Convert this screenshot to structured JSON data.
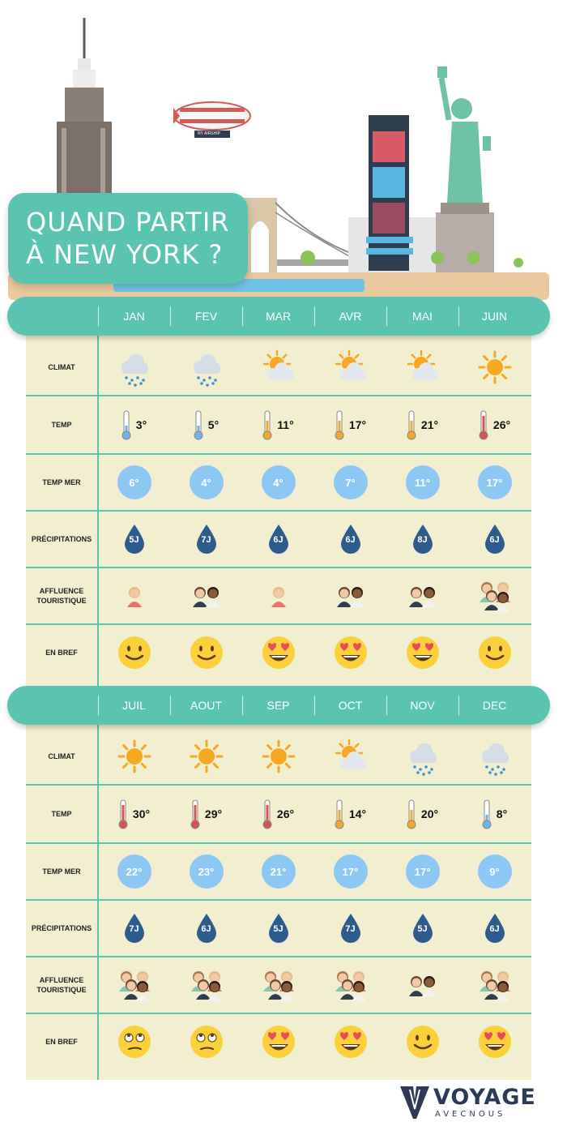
{
  "header": {
    "title_line1": "QUAND PARTIR",
    "title_line2": "À NEW YORK ?",
    "blimp_text": "NY AIRSHIP"
  },
  "row_labels": {
    "climat": "CLIMAT",
    "temp": "TEMP",
    "temp_mer": "TEMP MER",
    "precipitations": "PRÉCIPITATIONS",
    "affluence": "AFFLUENCE TOURISTIQUE",
    "en_bref": "EN BREF"
  },
  "tables": [
    {
      "months": [
        "JAN",
        "FEV",
        "MAR",
        "AVR",
        "MAI",
        "JUIN"
      ],
      "climat": [
        "rain-cloud-icon",
        "rain-cloud-icon",
        "sun-cloud-icon",
        "sun-cloud-icon",
        "sun-cloud-icon",
        "sun-icon"
      ],
      "temp": [
        "3°",
        "5°",
        "11°",
        "17°",
        "21°",
        "26°"
      ],
      "thermo": [
        "cold",
        "cold",
        "mild",
        "mild",
        "mild",
        "hot"
      ],
      "temp_mer": [
        "6°",
        "4°",
        "4°",
        "7°",
        "11°",
        "17°"
      ],
      "precipitations": [
        "5J",
        "7J",
        "6J",
        "6J",
        "8J",
        "6J"
      ],
      "affluence": [
        1,
        2,
        1,
        2,
        2,
        3
      ],
      "en_bref": [
        "smile",
        "smile",
        "love",
        "love",
        "love",
        "smile"
      ]
    },
    {
      "months": [
        "JUIL",
        "AOUT",
        "SEP",
        "OCT",
        "NOV",
        "DEC"
      ],
      "climat": [
        "sun-icon",
        "sun-icon",
        "sun-icon",
        "sun-cloud-icon",
        "rain-cloud-icon",
        "rain-cloud-icon"
      ],
      "temp": [
        "30°",
        "29°",
        "26°",
        "14°",
        "20°",
        "8°"
      ],
      "thermo": [
        "hot",
        "hot",
        "hot",
        "mild",
        "mild",
        "cold"
      ],
      "temp_mer": [
        "22°",
        "23°",
        "21°",
        "17°",
        "17°",
        "9°"
      ],
      "precipitations": [
        "7J",
        "6J",
        "5J",
        "7J",
        "5J",
        "6J"
      ],
      "affluence": [
        3,
        3,
        3,
        3,
        2,
        3
      ],
      "en_bref": [
        "eyeroll",
        "eyeroll",
        "love",
        "love",
        "smile",
        "love"
      ]
    }
  ],
  "logo": {
    "word": "VOYAGE",
    "sub": "AVECNOUS"
  },
  "colors": {
    "teal": "#5bc4b0",
    "cream": "#f2eed0",
    "sea_circle": "#8dc8f5",
    "drop": "#2d5b8c",
    "sun": "#f7a823",
    "emoji": "#fbd03a",
    "logo": "#2d3a56"
  }
}
